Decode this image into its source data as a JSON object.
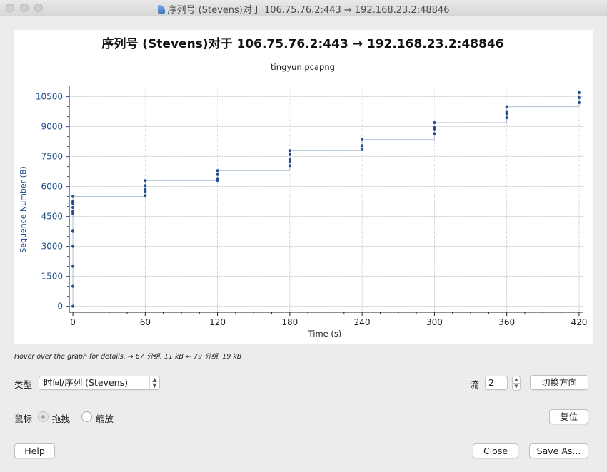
{
  "window": {
    "title": "序列号 (Stevens)对于 106.75.76.2:443 → 192.168.23.2:48846"
  },
  "chart_data": {
    "type": "scatter",
    "title": "序列号 (Stevens)对于 106.75.76.2:443 → 192.168.23.2:48846",
    "subtitle": "tingyun.pcapng",
    "xlabel": "Time (s)",
    "ylabel": "Sequence Number (B)",
    "xlim": [
      -3,
      423
    ],
    "ylim": [
      -300,
      10950
    ],
    "xticks": [
      0,
      60,
      120,
      180,
      240,
      300,
      360,
      420
    ],
    "yticks": [
      0,
      1500,
      3000,
      4500,
      6000,
      7500,
      9000,
      10500
    ],
    "grid": true,
    "color": "#1f4e8c",
    "line_color": "#a9bcd6",
    "points": [
      [
        0,
        0
      ],
      [
        0,
        1000
      ],
      [
        0,
        2000
      ],
      [
        0,
        3000
      ],
      [
        0,
        3750
      ],
      [
        0,
        3800
      ],
      [
        0,
        4650
      ],
      [
        0,
        4750
      ],
      [
        0,
        4950
      ],
      [
        0,
        5150
      ],
      [
        0,
        5250
      ],
      [
        0,
        5500
      ],
      [
        60,
        5550
      ],
      [
        60,
        5750
      ],
      [
        60,
        5850
      ],
      [
        60,
        6050
      ],
      [
        60,
        6300
      ],
      [
        120,
        6300
      ],
      [
        120,
        6400
      ],
      [
        120,
        6600
      ],
      [
        120,
        6800
      ],
      [
        180,
        7050
      ],
      [
        180,
        7250
      ],
      [
        180,
        7350
      ],
      [
        180,
        7600
      ],
      [
        180,
        7800
      ],
      [
        240,
        7850
      ],
      [
        240,
        8050
      ],
      [
        240,
        8350
      ],
      [
        300,
        8650
      ],
      [
        300,
        8850
      ],
      [
        300,
        8950
      ],
      [
        300,
        9200
      ],
      [
        360,
        9450
      ],
      [
        360,
        9650
      ],
      [
        360,
        9750
      ],
      [
        360,
        10000
      ],
      [
        420,
        10200
      ],
      [
        420,
        10450
      ],
      [
        420,
        10700
      ]
    ],
    "step_line": [
      [
        0,
        0
      ],
      [
        0,
        5500
      ],
      [
        60,
        5500
      ],
      [
        60,
        6300
      ],
      [
        120,
        6300
      ],
      [
        120,
        6800
      ],
      [
        180,
        6800
      ],
      [
        180,
        7800
      ],
      [
        240,
        7800
      ],
      [
        240,
        8350
      ],
      [
        300,
        8350
      ],
      [
        300,
        9200
      ],
      [
        360,
        9200
      ],
      [
        360,
        10000
      ],
      [
        420,
        10000
      ],
      [
        420,
        10700
      ]
    ]
  },
  "status": "Hover over the graph for details. → 67 分组, 11 kB ← 79 分组, 19 kB",
  "controls": {
    "type_label": "类型",
    "type_value": "时间/序列 (Stevens)",
    "stream_label": "流",
    "stream_value": "2",
    "switch_button": "切换方向",
    "mouse_label": "鼠标",
    "drag_label": "拖拽",
    "zoom_label": "缩放",
    "reset_button": "复位",
    "help_button": "Help",
    "close_button": "Close",
    "save_button": "Save As..."
  }
}
